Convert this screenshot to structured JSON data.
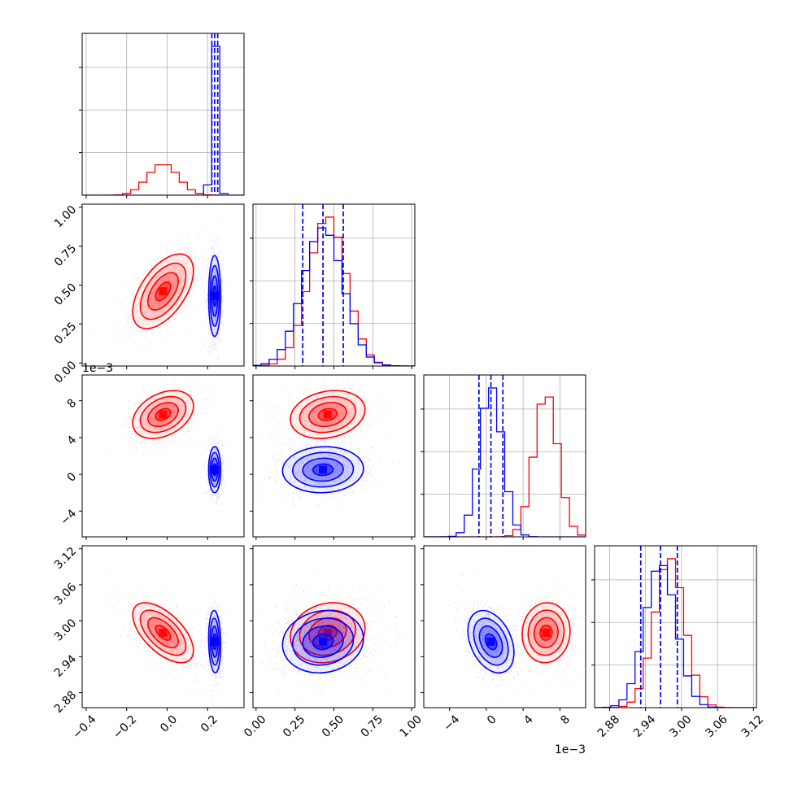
{
  "colors": {
    "red": "#ff0000",
    "blue": "#0000ff",
    "grid": "#b0b0b0",
    "axes": "#000000"
  },
  "chart_data": {
    "type": "corner",
    "title": "",
    "parameters": [
      {
        "range": [
          -0.42,
          0.38
        ],
        "ticks": [
          -0.4,
          -0.2,
          0.0,
          0.2
        ],
        "tick_labels": [
          "−0.4",
          "−0.2",
          "0.0",
          "0.2"
        ],
        "offset_label": ""
      },
      {
        "range": [
          -0.02,
          1.02
        ],
        "ticks": [
          0.0,
          0.25,
          0.5,
          0.75,
          1.0
        ],
        "tick_labels": [
          "0.00",
          "0.25",
          "0.50",
          "0.75",
          "1.00"
        ],
        "offset_label": ""
      },
      {
        "range": [
          -6.8,
          10.8
        ],
        "ticks": [
          -4,
          0,
          4,
          8
        ],
        "tick_labels": [
          "−4",
          "0",
          "4",
          "8"
        ],
        "offset_label": "1e−3"
      },
      {
        "range": [
          2.855,
          3.125
        ],
        "ticks": [
          2.88,
          2.94,
          3.0,
          3.06,
          3.12
        ],
        "tick_labels": [
          "2.88",
          "2.94",
          "3.00",
          "3.06",
          "3.12"
        ],
        "offset_label": ""
      }
    ],
    "series": [
      {
        "color": "red",
        "mean": [
          -0.02,
          0.46,
          6.5,
          2.98
        ],
        "std": [
          0.075,
          0.12,
          1.3,
          0.025
        ],
        "corr": {
          "0-1": 0.55,
          "0-2": 0.35,
          "0-3": -0.6,
          "1-2": 0.2,
          "1-3": 0.15,
          "2-3": 0.05
        }
      },
      {
        "color": "blue",
        "mean": [
          0.235,
          0.43,
          0.5,
          2.965
        ],
        "std": [
          0.015,
          0.13,
          1.25,
          0.026
        ],
        "corr": {
          "0-1": 0.0,
          "0-2": 0.0,
          "0-3": -0.1,
          "1-2": 0.05,
          "1-3": 0.1,
          "2-3": -0.35
        }
      }
    ],
    "quantile_lines": {
      "color": "blue",
      "values": [
        [
          0.221,
          0.235,
          0.25
        ],
        [
          0.3,
          0.43,
          0.56
        ],
        [
          -0.8,
          0.5,
          1.8
        ],
        [
          2.932,
          2.965,
          2.993
        ]
      ]
    },
    "grid": true
  }
}
